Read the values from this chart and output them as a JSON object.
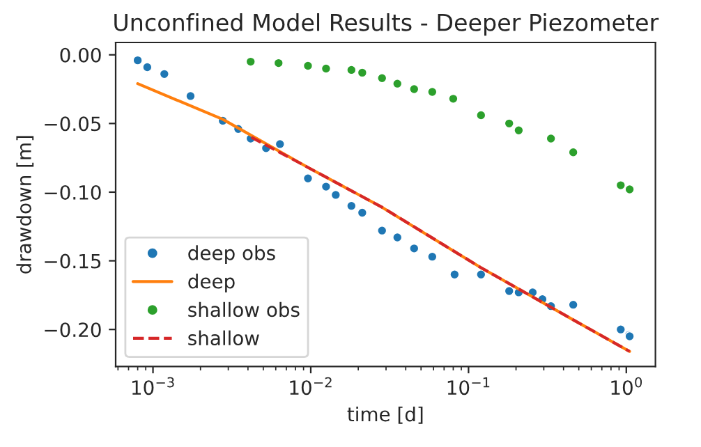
{
  "chart_data": {
    "type": "scatter",
    "title": "Unconfined Model Results - Deeper Piezometer",
    "xlabel": "time [d]",
    "ylabel": "drawdown [m]",
    "log": "x",
    "xlim": [
      0.00058,
      1.53
    ],
    "ylim": [
      -0.227,
      0.009
    ],
    "xticks": [
      {
        "value": 0.001,
        "label": "10$^{−3}$"
      },
      {
        "value": 0.01,
        "label": "10$^{−2}$"
      },
      {
        "value": 0.1,
        "label": "10$^{−1}$"
      },
      {
        "value": 1,
        "label": "10$^{0}$"
      }
    ],
    "yticks": [
      {
        "value": 0,
        "label": "0.00"
      },
      {
        "value": -0.05,
        "label": "−0.05"
      },
      {
        "value": -0.1,
        "label": "−0.10"
      },
      {
        "value": -0.15,
        "label": "−0.15"
      },
      {
        "value": -0.2,
        "label": "−0.20"
      }
    ],
    "legend": "bottom left",
    "grid": false,
    "series": [
      {
        "name": "deep obs",
        "marker": "circle",
        "color": "#1f77b4",
        "x": [
          0.0008,
          0.00092,
          0.00118,
          0.00173,
          0.00277,
          0.00347,
          0.00416,
          0.00521,
          0.00638,
          0.0096,
          0.0125,
          0.0144,
          0.0181,
          0.0212,
          0.0283,
          0.0354,
          0.0452,
          0.0589,
          0.0816,
          0.12,
          0.181,
          0.208,
          0.255,
          0.294,
          0.333,
          0.461,
          0.922,
          1.04,
          1.05
        ],
        "values": [
          -0.004,
          -0.009,
          -0.014,
          -0.03,
          -0.048,
          -0.054,
          -0.061,
          -0.068,
          -0.065,
          -0.09,
          -0.096,
          -0.102,
          -0.11,
          -0.115,
          -0.128,
          -0.133,
          -0.141,
          -0.147,
          -0.16,
          -0.16,
          -0.172,
          -0.173,
          -0.173,
          -0.178,
          -0.183,
          -0.182,
          -0.2,
          -0.204,
          -0.205
        ]
      },
      {
        "name": "deep",
        "type": "line",
        "line_style": "solid",
        "color": "#ff7f0e",
        "x": [
          0.0008,
          0.00277,
          0.0096,
          0.0283,
          0.12,
          0.461,
          1.05
        ],
        "values": [
          -0.021,
          -0.047,
          -0.082,
          -0.111,
          -0.155,
          -0.193,
          -0.216
        ]
      },
      {
        "name": "shallow obs",
        "marker": "circle",
        "color": "#2ca02c",
        "x": [
          0.00416,
          0.00625,
          0.0096,
          0.0125,
          0.0181,
          0.0212,
          0.0283,
          0.0354,
          0.0452,
          0.0589,
          0.08,
          0.12,
          0.181,
          0.208,
          0.333,
          0.461,
          0.922,
          1.05
        ],
        "values": [
          -0.005,
          -0.006,
          -0.008,
          -0.01,
          -0.011,
          -0.013,
          -0.017,
          -0.021,
          -0.025,
          -0.027,
          -0.032,
          -0.044,
          -0.05,
          -0.055,
          -0.061,
          -0.071,
          -0.095,
          -0.098
        ]
      },
      {
        "name": "shallow",
        "type": "line",
        "line_style": "dashed",
        "color": "#d62728",
        "x": [
          0.0042,
          0.0096,
          0.0283,
          0.12,
          0.461,
          1.05
        ],
        "values": [
          -0.06,
          -0.082,
          -0.111,
          -0.155,
          -0.193,
          -0.216
        ]
      }
    ]
  }
}
